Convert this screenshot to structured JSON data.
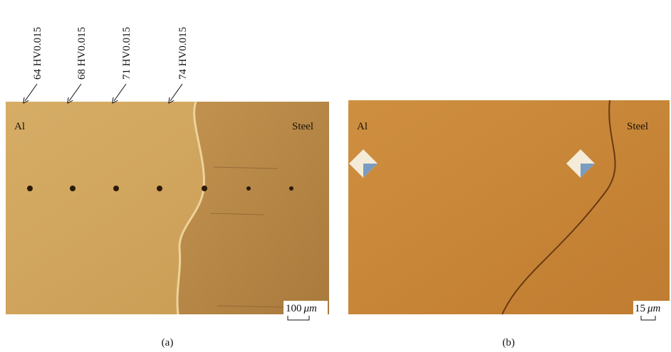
{
  "panels": [
    {
      "caption": "(a)",
      "left_label": "Al",
      "right_label": "Steel",
      "scale_bar": {
        "value": "100",
        "unit": "μm"
      },
      "annotations": [
        "64 HV0.015",
        "68 HV0.015",
        "71 HV0.015",
        "74 HV0.015"
      ]
    },
    {
      "caption": "(b)",
      "left_label": "Al",
      "right_label": "Steel",
      "scale_bar": {
        "value": "15",
        "unit": "μm"
      }
    }
  ]
}
